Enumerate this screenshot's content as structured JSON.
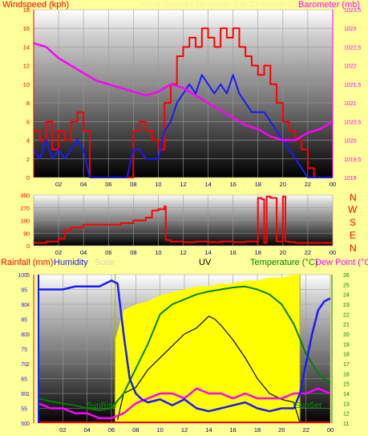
{
  "header": {
    "windspeed_label": "Windspeed (kph)",
    "barometer_label": "Barometer (mb)",
    "faint_caption": "Wind Speed / Direction   Sat 23 March 2013"
  },
  "colors": {
    "background": "#ffff99",
    "wind": "#ff0000",
    "gust": "#1a1aff",
    "baro": "#ff00ff",
    "rain": "#ff0000",
    "humidity": "#1a1aff",
    "solar": "#ffff00",
    "uv": "#000000",
    "temp": "#008000",
    "dew": "#ff00ff"
  },
  "chart_data": [
    {
      "type": "line",
      "title": "",
      "xlabel": "",
      "x_ticks": [
        "02",
        "04",
        "06",
        "08",
        "10",
        "12",
        "14",
        "16",
        "18",
        "20",
        "22",
        "00"
      ],
      "ylabel_left": "Windspeed (kph)",
      "ylim_left": [
        0,
        18
      ],
      "yticks_left": [
        "0",
        "2",
        "4",
        "6",
        "8",
        "10",
        "12",
        "14",
        "16",
        "18"
      ],
      "ylabel_right": "Barometer (mb)",
      "ylim_right": [
        1019,
        1023.5
      ],
      "yticks_right": [
        "1019",
        "1019,5",
        "1020",
        "1020,5",
        "1021",
        "1021,5",
        "1022",
        "1022,5",
        "1023",
        "1023,5"
      ],
      "series": [
        {
          "name": "",
          "axis": "left",
          "color": "#ff0000",
          "x": [
            0,
            0.5,
            1,
            1.5,
            2,
            2.5,
            3,
            3.5,
            4,
            4.5,
            5,
            5.5,
            6,
            6.5,
            7,
            7.5,
            8,
            8.5,
            9,
            9.5,
            10,
            10.5,
            11,
            11.5,
            12,
            12.5,
            13,
            13.5,
            14,
            14.5,
            15,
            15.5,
            16,
            16.5,
            17,
            17.5,
            18,
            18.5,
            19,
            19.5,
            20,
            20.5,
            21,
            21.5,
            22,
            22.5,
            23,
            24
          ],
          "y": [
            5,
            4,
            6,
            3,
            5,
            4,
            6,
            7,
            5,
            0,
            0,
            0,
            0,
            0,
            0,
            0,
            5,
            6,
            5,
            4,
            3,
            8,
            10,
            13,
            14,
            15,
            14,
            16,
            15,
            14,
            16,
            15,
            16,
            14,
            13,
            12,
            11,
            12,
            10,
            8,
            6,
            5,
            4,
            3,
            1,
            0,
            0,
            0
          ]
        },
        {
          "name": "",
          "axis": "left",
          "color": "#1a1aff",
          "x": [
            0,
            0.5,
            1,
            1.5,
            2,
            2.5,
            3,
            3.5,
            4,
            4.5,
            5,
            5.5,
            6,
            6.5,
            7,
            7.5,
            8,
            8.5,
            9,
            9.5,
            10,
            10.5,
            11,
            11.5,
            12,
            12.5,
            13,
            13.5,
            14,
            14.5,
            15,
            15.5,
            16,
            16.5,
            17,
            17.5,
            18,
            18.5,
            19,
            19.5,
            20,
            20.5,
            21,
            21.5,
            22,
            22.5,
            23,
            24
          ],
          "y": [
            3,
            2,
            4,
            2,
            3,
            2,
            3,
            4,
            3,
            0,
            0,
            0,
            0,
            0,
            0,
            0,
            3,
            3,
            2,
            2,
            2,
            5,
            6,
            8,
            9,
            10,
            9,
            11,
            10,
            9,
            10,
            9,
            11,
            9,
            8,
            7,
            7,
            7,
            6,
            5,
            4,
            3,
            2,
            1,
            0,
            0,
            0,
            0
          ]
        },
        {
          "name": "",
          "axis": "right",
          "color": "#ff00ff",
          "x": [
            0,
            1,
            2,
            3,
            4,
            5,
            6,
            7,
            8,
            9,
            10,
            11,
            12,
            13,
            14,
            15,
            16,
            17,
            18,
            19,
            20,
            21,
            22,
            23,
            24
          ],
          "y": [
            1022.6,
            1022.5,
            1022.2,
            1022.0,
            1021.8,
            1021.6,
            1021.5,
            1021.4,
            1021.3,
            1021.2,
            1021.3,
            1021.5,
            1021.4,
            1021.2,
            1021.0,
            1020.8,
            1020.6,
            1020.4,
            1020.3,
            1020.1,
            1020.0,
            1020.0,
            1020.2,
            1020.3,
            1020.5
          ]
        }
      ]
    },
    {
      "type": "line",
      "title": "",
      "ylim": [
        0,
        360
      ],
      "yticks": [
        "0",
        "90",
        "180",
        "270",
        "360"
      ],
      "direction_labels": [
        "N",
        "W",
        "S",
        "E",
        "N"
      ],
      "series": [
        {
          "name": "",
          "color": "#ff0000",
          "x": [
            0,
            1,
            2,
            2.5,
            3,
            4,
            5,
            6,
            7,
            8,
            9,
            9.5,
            10,
            10.5,
            10.6,
            11,
            12,
            13,
            14,
            15,
            16,
            17,
            17.9,
            18,
            18.3,
            18.5,
            18.7,
            19,
            19.5,
            20,
            20.2,
            20.5,
            21,
            22,
            23,
            24
          ],
          "y": [
            20,
            30,
            50,
            110,
            130,
            150,
            150,
            150,
            160,
            180,
            200,
            250,
            260,
            280,
            40,
            30,
            25,
            30,
            25,
            30,
            25,
            30,
            25,
            340,
            330,
            20,
            350,
            340,
            30,
            350,
            30,
            25,
            20,
            20,
            20,
            20
          ]
        }
      ]
    },
    {
      "type": "line",
      "title": "",
      "labels": {
        "rainfall": "Rainfall (mm)",
        "humidity": "Humidity",
        "solar": "Solar",
        "uv": "UV",
        "temperature": "Temperature (°C)",
        "dew_point": "Dew Point (°C)",
        "sunrise": "SunRise",
        "sunset": "SunSet"
      },
      "ylim_rain": [
        0,
        5
      ],
      "yticks_rain": [
        "0",
        "1",
        "2",
        "3",
        "4",
        "5"
      ],
      "ylim_humidity": [
        50,
        100
      ],
      "yticks_humidity": [
        "50",
        "55",
        "60",
        "65",
        "70",
        "75",
        "80",
        "85",
        "90",
        "95",
        "100"
      ],
      "ylim_temp": [
        11,
        26
      ],
      "yticks_temp": [
        "11",
        "12",
        "13",
        "14",
        "15",
        "16",
        "17",
        "18",
        "19",
        "20",
        "21",
        "22",
        "23",
        "24",
        "25",
        "26"
      ],
      "sunrise_hour": 6.3,
      "sunset_hour": 21.5,
      "series": [
        {
          "name": "Humidity",
          "axis": "humidity",
          "color": "#1a1aff",
          "x": [
            0,
            1,
            2,
            3,
            4,
            5,
            6,
            6.5,
            7,
            7.5,
            8,
            8.5,
            9,
            10,
            11,
            12,
            13,
            14,
            15,
            16,
            17,
            18,
            19,
            20,
            21,
            21.5,
            22,
            22.5,
            23,
            23.5,
            24
          ],
          "y": [
            95,
            95,
            95,
            96,
            96,
            96,
            98,
            97,
            80,
            65,
            60,
            58,
            57,
            58,
            56,
            58,
            55,
            54,
            55,
            56,
            57,
            55,
            54,
            55,
            55,
            60,
            70,
            80,
            88,
            91,
            92
          ]
        },
        {
          "name": "Dew Point",
          "axis": "temp",
          "color": "#ff00ff",
          "x": [
            0,
            1,
            2,
            3,
            4,
            5,
            6,
            7,
            8,
            9,
            10,
            11,
            12,
            13,
            14,
            15,
            16,
            17,
            18,
            19,
            20,
            21,
            22,
            23,
            24
          ],
          "y": [
            13,
            12.5,
            12.5,
            12,
            12,
            11.5,
            11.5,
            12,
            13,
            13.5,
            14,
            14,
            13.5,
            14.5,
            14,
            14,
            13.5,
            14,
            13.5,
            13.5,
            13.5,
            14,
            14,
            14.5,
            14
          ]
        },
        {
          "name": "Temperature",
          "axis": "temp",
          "color": "#008000",
          "x": [
            0,
            1,
            2,
            3,
            4,
            5,
            6,
            7,
            8,
            9,
            10,
            11,
            12,
            13,
            14,
            15,
            16,
            17,
            18,
            19,
            20,
            21,
            22,
            23,
            24
          ],
          "y": [
            13.5,
            13.2,
            13,
            12.8,
            12.5,
            12.3,
            12.5,
            14,
            16.5,
            19,
            22,
            23,
            23.5,
            24,
            24.3,
            24.5,
            24.7,
            24.8,
            24.5,
            24,
            23,
            21,
            18,
            16,
            15
          ]
        },
        {
          "name": "UV",
          "axis": "humidity",
          "color": "#000000",
          "x": [
            6.5,
            7,
            8,
            9,
            10,
            11,
            12,
            13,
            13.5,
            14,
            14.5,
            15,
            16,
            17,
            18,
            19,
            20,
            21,
            21.5
          ],
          "y": [
            51,
            60,
            62,
            68,
            72,
            76,
            80,
            82,
            84,
            86,
            85,
            83,
            78,
            72,
            65,
            60,
            58,
            57,
            50
          ]
        },
        {
          "name": "Solar",
          "axis": "humidity",
          "color": "#ffff00",
          "x": [
            6.3,
            7,
            8,
            9,
            10,
            11,
            12,
            13,
            14,
            15,
            16,
            17,
            18,
            19,
            20,
            21,
            21.5
          ],
          "y": [
            78,
            88,
            90,
            91,
            93,
            94,
            95,
            96,
            96,
            97,
            97,
            98,
            98,
            99,
            99,
            100,
            100
          ]
        }
      ]
    }
  ]
}
